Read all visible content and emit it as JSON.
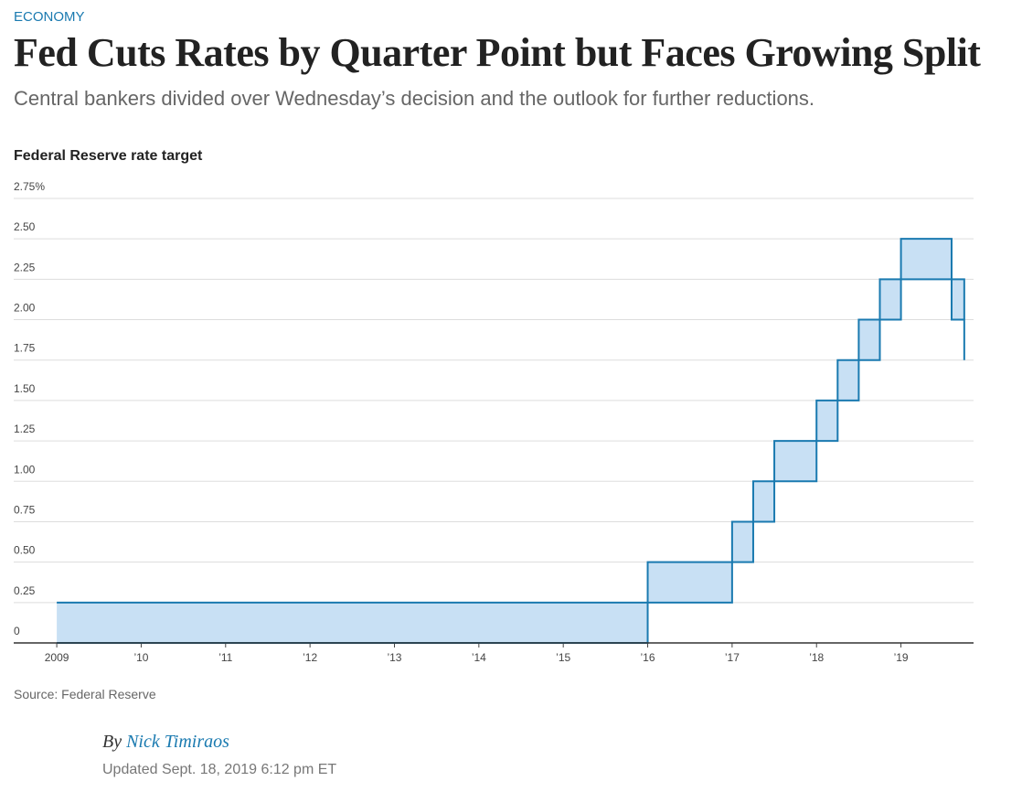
{
  "section": "ECONOMY",
  "headline": "Fed Cuts Rates by Quarter Point but Faces Growing Split",
  "subtitle": "Central bankers divided over Wednesday’s decision and the outlook for further reductions.",
  "chart_data": {
    "type": "step-area",
    "title": "Federal Reserve rate target",
    "x": [
      2009,
      2016,
      2017,
      2017.25,
      2017.5,
      2018,
      2018.25,
      2018.5,
      2018.75,
      2019,
      2019.6,
      2019.75
    ],
    "series": [
      {
        "color": "#1a7ab0",
        "values": [
          0,
          0.25,
          0.5,
          0.75,
          1,
          1.25,
          1.5,
          1.75,
          2,
          2.25,
          2,
          1.75
        ]
      },
      {
        "color": "#1a7ab0",
        "values": [
          0.25,
          0.5,
          0.75,
          1,
          1.25,
          1.5,
          1.75,
          2,
          2.25,
          2.5,
          2.25,
          2
        ]
      }
    ],
    "fill": "#c8e0f4",
    "xlim": [
      2008.49,
      2019.86
    ],
    "xticks": [
      2009,
      {
        "value": 2010,
        "label": "’10"
      },
      {
        "value": 2011,
        "label": "’11"
      },
      {
        "value": 2012,
        "label": "’12"
      },
      {
        "value": 2013,
        "label": "’13"
      },
      {
        "value": 2014,
        "label": "’14"
      },
      {
        "value": 2015,
        "label": "’15"
      },
      {
        "value": 2016,
        "label": "’16"
      },
      {
        "value": 2017,
        "label": "’17"
      },
      {
        "value": 2018,
        "label": "’18"
      },
      {
        "value": 2019,
        "label": "’19"
      }
    ],
    "ylim": [
      0,
      2.75
    ],
    "yticks": [
      0,
      {
        "value": 0.25,
        "label": "0.25"
      },
      {
        "value": 0.5,
        "label": "0.50"
      },
      {
        "value": 0.75,
        "label": "0.75"
      },
      {
        "value": 1,
        "label": "1.00"
      },
      {
        "value": 1.25,
        "label": "1.25"
      },
      {
        "value": 1.5,
        "label": "1.50"
      },
      {
        "value": 1.75,
        "label": "1.75"
      },
      {
        "value": 2,
        "label": "2.00"
      },
      {
        "value": 2.25,
        "label": "2.25"
      },
      {
        "value": 2.5,
        "label": "2.50"
      },
      {
        "value": 2.75,
        "label": "2.75%"
      }
    ],
    "grid": true
  },
  "source": "Source: Federal Reserve",
  "byline": {
    "prefix": "By",
    "author": "Nick Timiraos"
  },
  "updated": "Updated Sept. 18, 2019 6:12 pm ET"
}
